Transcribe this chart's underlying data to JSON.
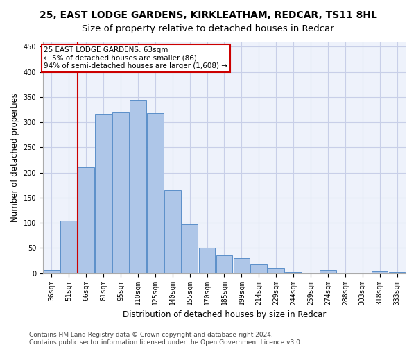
{
  "title": "25, EAST LODGE GARDENS, KIRKLEATHAM, REDCAR, TS11 8HL",
  "subtitle": "Size of property relative to detached houses in Redcar",
  "xlabel": "Distribution of detached houses by size in Redcar",
  "ylabel": "Number of detached properties",
  "categories": [
    "36sqm",
    "51sqm",
    "66sqm",
    "81sqm",
    "95sqm",
    "110sqm",
    "125sqm",
    "140sqm",
    "155sqm",
    "170sqm",
    "185sqm",
    "199sqm",
    "214sqm",
    "229sqm",
    "244sqm",
    "259sqm",
    "274sqm",
    "288sqm",
    "303sqm",
    "318sqm",
    "333sqm"
  ],
  "values": [
    7,
    105,
    210,
    317,
    319,
    344,
    318,
    165,
    98,
    50,
    35,
    30,
    17,
    10,
    3,
    0,
    6,
    0,
    0,
    4,
    3
  ],
  "bar_color": "#aec6e8",
  "bar_edge_color": "#5b8fc9",
  "vline_color": "#cc0000",
  "vline_x_index": 1.5,
  "annotation_line1": "25 EAST LODGE GARDENS: 63sqm",
  "annotation_line2": "← 5% of detached houses are smaller (86)",
  "annotation_line3": "94% of semi-detached houses are larger (1,608) →",
  "annotation_box_edgecolor": "#cc0000",
  "ylim": [
    0,
    460
  ],
  "yticks": [
    0,
    50,
    100,
    150,
    200,
    250,
    300,
    350,
    400,
    450
  ],
  "footer_line1": "Contains HM Land Registry data © Crown copyright and database right 2024.",
  "footer_line2": "Contains public sector information licensed under the Open Government Licence v3.0.",
  "background_color": "#eef2fb",
  "grid_color": "#c8cfe8",
  "title_fontsize": 10,
  "axis_label_fontsize": 8.5,
  "tick_fontsize": 7,
  "footer_fontsize": 6.5,
  "annotation_fontsize": 7.5
}
